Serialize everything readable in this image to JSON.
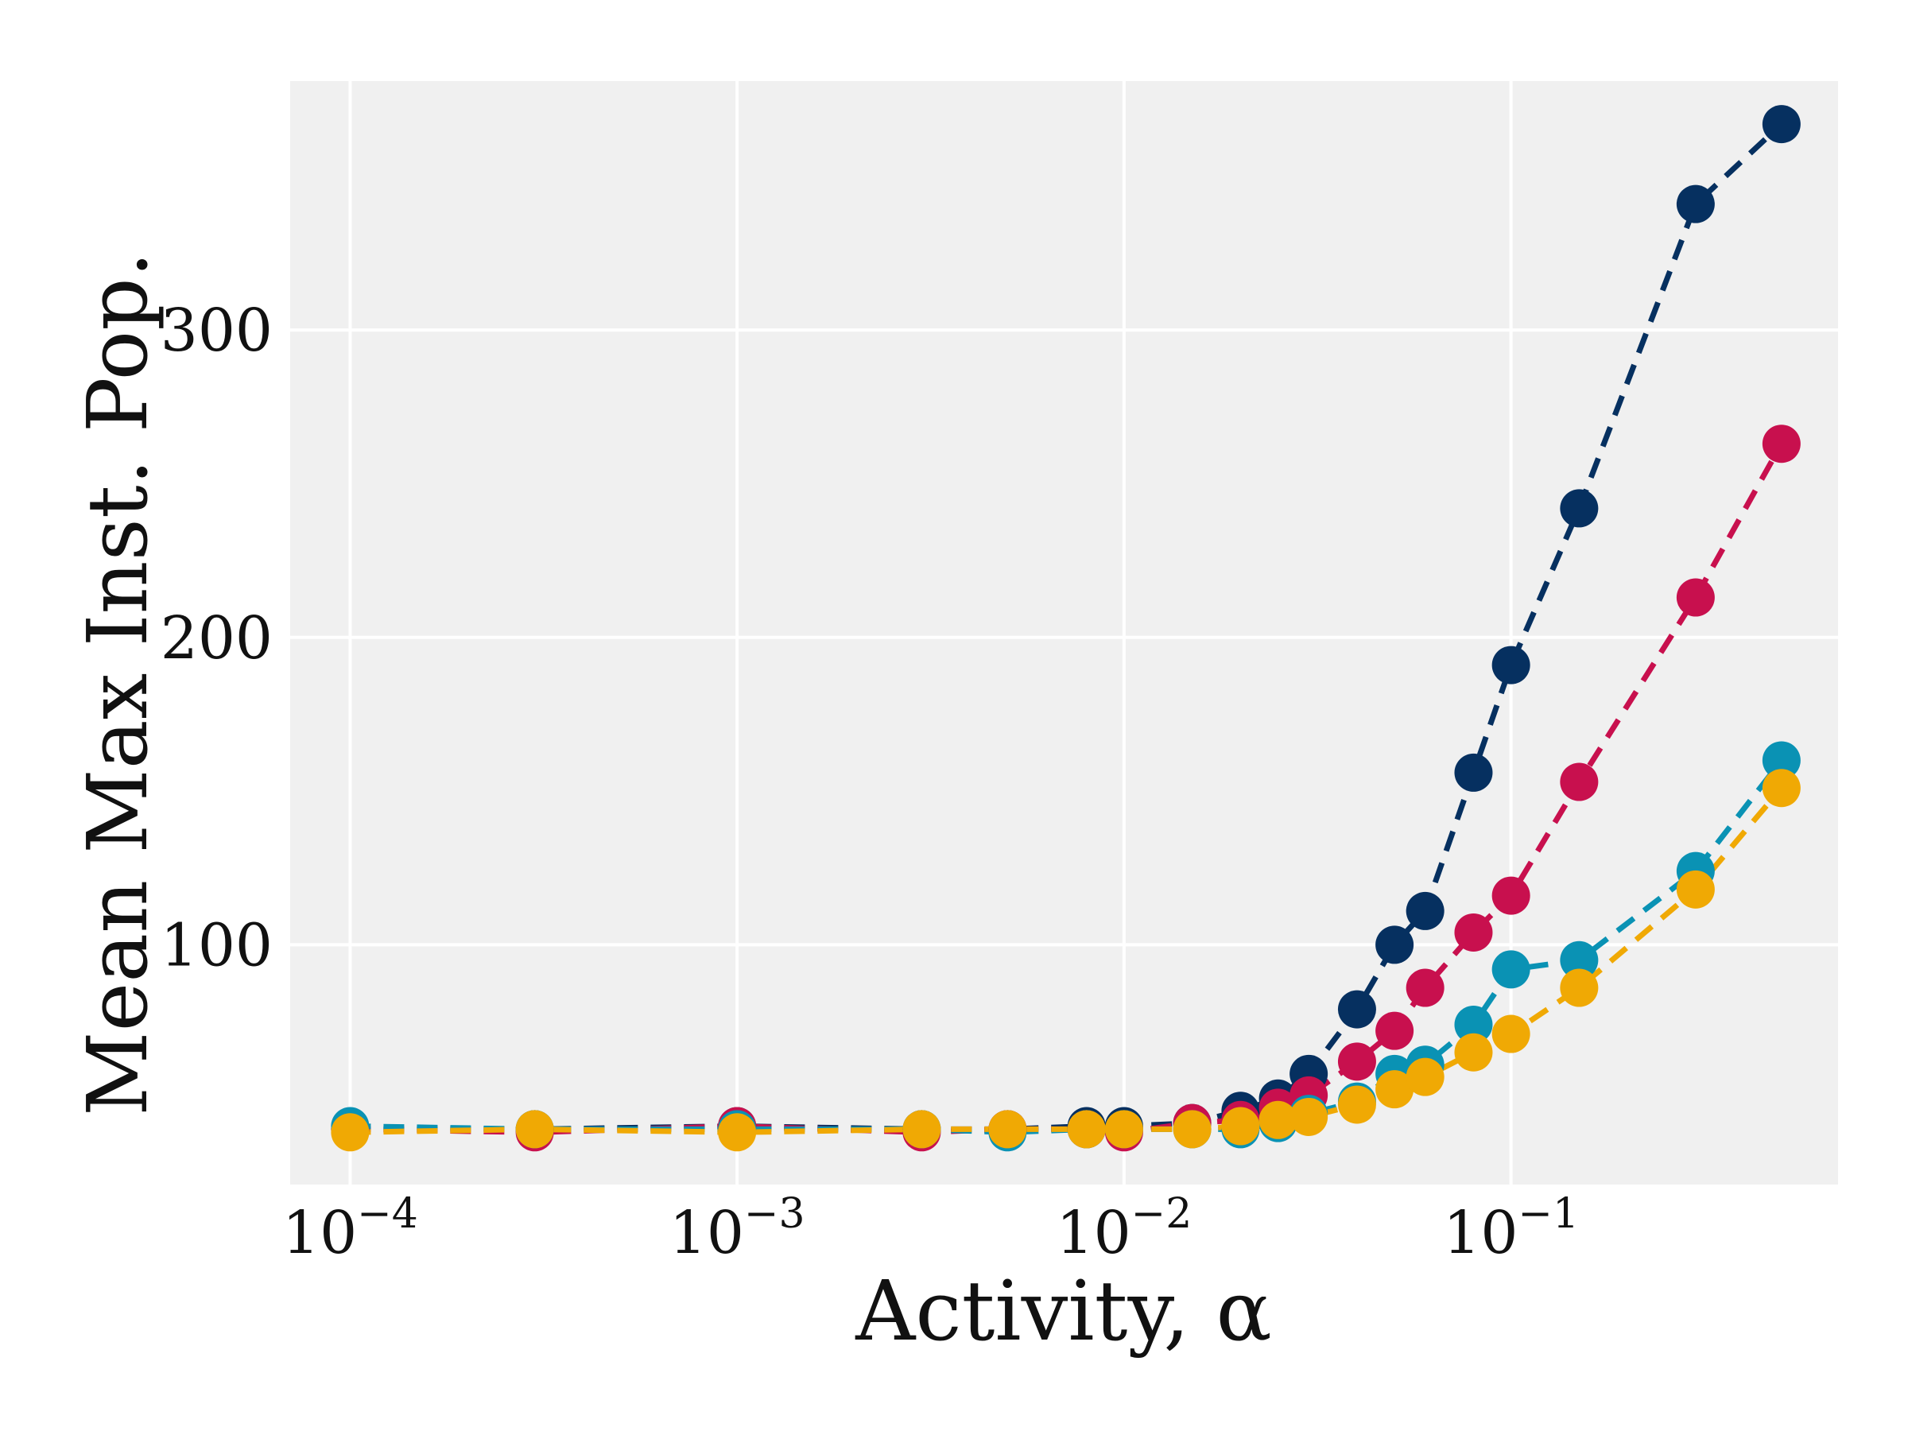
{
  "chart_data": {
    "type": "line",
    "xlabel": "Activity, α",
    "ylabel": "Mean Max Inst. Pop.",
    "x_scale": "log",
    "xlim": [
      7e-05,
      0.7
    ],
    "ylim": [
      22,
      381
    ],
    "x_ticks": [
      {
        "value": 0.0001,
        "base": "10",
        "exp": "−4"
      },
      {
        "value": 0.001,
        "base": "10",
        "exp": "−3"
      },
      {
        "value": 0.01,
        "base": "10",
        "exp": "−2"
      },
      {
        "value": 0.1,
        "base": "10",
        "exp": "−1"
      }
    ],
    "y_ticks": [
      {
        "value": 100,
        "label": "100"
      },
      {
        "value": 200,
        "label": "200"
      },
      {
        "value": 300,
        "label": "300"
      }
    ],
    "grid": true,
    "background_color": "#f0f0f0",
    "series": [
      {
        "color": "#063060",
        "x": [
          0.0001,
          0.0003,
          0.001,
          0.003,
          0.005,
          0.008,
          0.01,
          0.015,
          0.02,
          0.025,
          0.03,
          0.04,
          0.05,
          0.06,
          0.08,
          0.1,
          0.15,
          0.3,
          0.5
        ],
        "y": [
          40,
          40,
          41,
          40,
          40,
          41,
          41,
          42,
          46,
          50,
          58,
          79,
          100,
          111,
          156,
          191,
          242,
          341,
          367
        ]
      },
      {
        "color": "#c8104e",
        "x": [
          0.0001,
          0.0003,
          0.001,
          0.003,
          0.005,
          0.008,
          0.01,
          0.015,
          0.02,
          0.025,
          0.03,
          0.04,
          0.05,
          0.06,
          0.08,
          0.1,
          0.15,
          0.3,
          0.5
        ],
        "y": [
          40,
          39,
          41,
          39,
          40,
          40,
          39,
          42,
          43,
          47,
          51,
          62,
          72,
          86,
          104,
          116,
          153,
          213,
          263
        ]
      },
      {
        "color": "#0a92b4",
        "x": [
          0.0001,
          0.0003,
          0.001,
          0.003,
          0.005,
          0.008,
          0.01,
          0.015,
          0.02,
          0.025,
          0.03,
          0.04,
          0.05,
          0.06,
          0.08,
          0.1,
          0.15,
          0.3,
          0.5
        ],
        "y": [
          41,
          40,
          40,
          40,
          39,
          40,
          40,
          40,
          40,
          42,
          45,
          49,
          58,
          61,
          74,
          92,
          95,
          124,
          160
        ]
      },
      {
        "color": "#f0a904",
        "x": [
          0.0001,
          0.0003,
          0.001,
          0.003,
          0.005,
          0.008,
          0.01,
          0.015,
          0.02,
          0.025,
          0.03,
          0.04,
          0.05,
          0.06,
          0.08,
          0.1,
          0.15,
          0.3,
          0.5
        ],
        "y": [
          39,
          40,
          39,
          40,
          40,
          40,
          40,
          40,
          41,
          43,
          44,
          48,
          53,
          57,
          65,
          71,
          86,
          118,
          151
        ]
      }
    ]
  }
}
